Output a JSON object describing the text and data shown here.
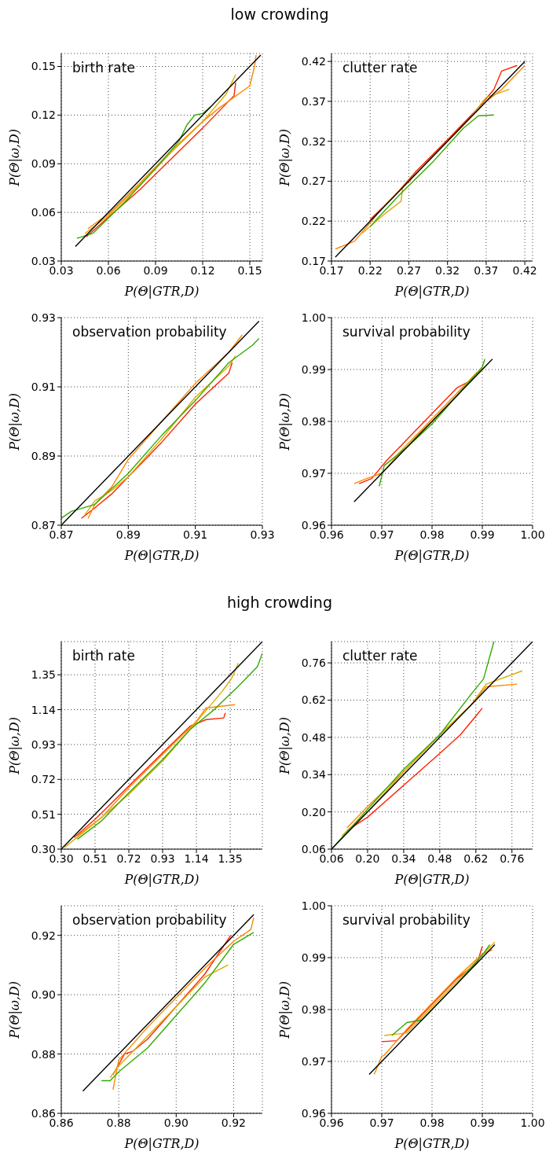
{
  "chart_data": [
    {
      "type": "line",
      "title": "birth rate",
      "annotations": [
        "low crowding"
      ],
      "xlabel": "P(Θ|GTR,D)",
      "ylabel": "P(Θ|ω,D)",
      "xlim": [
        0.03,
        0.158
      ],
      "ylim": [
        0.03,
        0.158
      ],
      "xticks": [
        0.03,
        0.06,
        0.09,
        0.12,
        0.15
      ],
      "yticks": [
        0.03,
        0.06,
        0.09,
        0.12,
        0.15
      ],
      "grid": true,
      "series": [
        {
          "color": "#000000",
          "x": [
            0.039,
            0.157
          ],
          "values": [
            0.039,
            0.157
          ]
        },
        {
          "color": "#33aa00",
          "x": [
            0.04,
            0.05,
            0.07,
            0.09,
            0.105,
            0.11,
            0.115,
            0.12,
            0.125
          ],
          "values": [
            0.044,
            0.047,
            0.066,
            0.087,
            0.104,
            0.114,
            0.12,
            0.121,
            0.125
          ]
        },
        {
          "color": "#ddaa00",
          "x": [
            0.045,
            0.06,
            0.08,
            0.1,
            0.12,
            0.135,
            0.141
          ],
          "values": [
            0.047,
            0.058,
            0.077,
            0.097,
            0.116,
            0.133,
            0.145
          ]
        },
        {
          "color": "#ff8800",
          "x": [
            0.047,
            0.06,
            0.08,
            0.1,
            0.12,
            0.13,
            0.15,
            0.153,
            0.154
          ],
          "values": [
            0.05,
            0.059,
            0.078,
            0.098,
            0.116,
            0.124,
            0.138,
            0.15,
            0.157
          ]
        },
        {
          "color": "#ff2200",
          "x": [
            0.046,
            0.06,
            0.08,
            0.1,
            0.12,
            0.14,
            0.141
          ],
          "values": [
            0.045,
            0.057,
            0.074,
            0.093,
            0.112,
            0.132,
            0.14
          ]
        }
      ]
    },
    {
      "type": "line",
      "title": "clutter rate",
      "xlabel": "P(Θ|GTR,D)",
      "ylabel": "P(Θ|ω,D)",
      "xlim": [
        0.17,
        0.43
      ],
      "ylim": [
        0.17,
        0.43
      ],
      "xticks": [
        0.17,
        0.22,
        0.27,
        0.32,
        0.37,
        0.42
      ],
      "yticks": [
        0.17,
        0.22,
        0.27,
        0.32,
        0.37,
        0.42
      ],
      "grid": true,
      "series": [
        {
          "color": "#000000",
          "x": [
            0.175,
            0.42
          ],
          "values": [
            0.175,
            0.42
          ]
        },
        {
          "color": "#33aa00",
          "x": [
            0.22,
            0.23,
            0.26,
            0.3,
            0.34,
            0.36,
            0.38
          ],
          "values": [
            0.213,
            0.224,
            0.255,
            0.293,
            0.336,
            0.352,
            0.353
          ]
        },
        {
          "color": "#ddaa00",
          "x": [
            0.21,
            0.24,
            0.26,
            0.262,
            0.3,
            0.35,
            0.37,
            0.4
          ],
          "values": [
            0.205,
            0.23,
            0.245,
            0.262,
            0.3,
            0.35,
            0.375,
            0.385
          ]
        },
        {
          "color": "#ff8800",
          "x": [
            0.175,
            0.2,
            0.22,
            0.24,
            0.27,
            0.32,
            0.37,
            0.39,
            0.42
          ],
          "values": [
            0.185,
            0.195,
            0.218,
            0.241,
            0.27,
            0.32,
            0.37,
            0.385,
            0.415
          ]
        },
        {
          "color": "#ff2200",
          "x": [
            0.22,
            0.25,
            0.28,
            0.32,
            0.36,
            0.38,
            0.39,
            0.41
          ],
          "values": [
            0.222,
            0.25,
            0.283,
            0.322,
            0.362,
            0.385,
            0.408,
            0.415
          ]
        }
      ]
    },
    {
      "type": "line",
      "title": "observation probability",
      "xlabel": "P(Θ|GTR,D)",
      "ylabel": "P(Θ|ω,D)",
      "xlim": [
        0.87,
        0.93
      ],
      "ylim": [
        0.87,
        0.93
      ],
      "xticks": [
        0.87,
        0.89,
        0.91,
        0.93
      ],
      "yticks": [
        0.87,
        0.89,
        0.91,
        0.93
      ],
      "grid": true,
      "series": [
        {
          "color": "#000000",
          "x": [
            0.87,
            0.929
          ],
          "values": [
            0.87,
            0.929
          ]
        },
        {
          "color": "#33aa00",
          "x": [
            0.87,
            0.873,
            0.88,
            0.89,
            0.9,
            0.91,
            0.92,
            0.927,
            0.929
          ],
          "values": [
            0.872,
            0.874,
            0.876,
            0.885,
            0.896,
            0.906,
            0.917,
            0.922,
            0.924
          ]
        },
        {
          "color": "#ddaa00",
          "x": [
            0.877,
            0.88,
            0.885,
            0.89,
            0.9,
            0.91,
            0.92,
            0.922
          ],
          "values": [
            0.873,
            0.877,
            0.88,
            0.884,
            0.895,
            0.907,
            0.916,
            0.919
          ]
        },
        {
          "color": "#ff8800",
          "x": [
            0.878,
            0.88,
            0.885,
            0.89,
            0.9,
            0.91,
            0.92,
            0.924
          ],
          "values": [
            0.872,
            0.876,
            0.881,
            0.889,
            0.9,
            0.911,
            0.92,
            0.925
          ]
        },
        {
          "color": "#ff2200",
          "x": [
            0.876,
            0.88,
            0.885,
            0.89,
            0.9,
            0.91,
            0.92,
            0.921
          ],
          "values": [
            0.872,
            0.875,
            0.879,
            0.884,
            0.894,
            0.905,
            0.914,
            0.917
          ]
        }
      ]
    },
    {
      "type": "line",
      "title": "survival probability",
      "xlabel": "P(Θ|GTR,D)",
      "ylabel": "P(Θ|ω,D)",
      "xlim": [
        0.96,
        1.0
      ],
      "ylim": [
        0.96,
        1.0
      ],
      "xticks": [
        0.96,
        0.97,
        0.98,
        0.99,
        {
          "value": 1.0,
          "label": "1.00"
        }
      ],
      "yticks": [
        0.96,
        0.97,
        0.98,
        0.99,
        {
          "value": 1.0,
          "label": "1.00"
        }
      ],
      "grid": true,
      "series": [
        {
          "color": "#000000",
          "x": [
            0.9645,
            0.992
          ],
          "values": [
            0.9645,
            0.992
          ]
        },
        {
          "color": "#33aa00",
          "x": [
            0.9695,
            0.9705,
            0.975,
            0.98,
            0.985,
            0.99,
            0.9905
          ],
          "values": [
            0.9675,
            0.9715,
            0.975,
            0.9795,
            0.985,
            0.9905,
            0.992
          ]
        },
        {
          "color": "#ddaa00",
          "x": [
            0.9725,
            0.975,
            0.98,
            0.985,
            0.988,
            0.9905
          ],
          "values": [
            0.973,
            0.9755,
            0.98,
            0.985,
            0.9885,
            0.9905
          ]
        },
        {
          "color": "#ff8800",
          "x": [
            0.9645,
            0.967,
            0.97,
            0.975,
            0.98,
            0.985,
            0.989
          ],
          "values": [
            0.968,
            0.969,
            0.97,
            0.9755,
            0.9805,
            0.9855,
            0.9895
          ]
        },
        {
          "color": "#ff2200",
          "x": [
            0.9655,
            0.968,
            0.971,
            0.975,
            0.98,
            0.985,
            0.988
          ],
          "values": [
            0.968,
            0.969,
            0.9725,
            0.9765,
            0.9815,
            0.9865,
            0.988
          ]
        }
      ]
    },
    {
      "type": "line",
      "title": "birth rate",
      "annotations": [
        "high crowding"
      ],
      "xlabel": "P(Θ|GTR,D)",
      "ylabel": "P(Θ|ω,D)",
      "xlim": [
        0.3,
        1.55
      ],
      "ylim": [
        0.3,
        1.55
      ],
      "xticks": [
        {
          "value": 0.3,
          "label": "0.30"
        },
        0.51,
        0.72,
        0.93,
        1.14,
        1.35
      ],
      "yticks": [
        {
          "value": 0.3,
          "label": "0.30"
        },
        0.51,
        0.72,
        0.93,
        1.14,
        1.35
      ],
      "grid": true,
      "series": [
        {
          "color": "#000000",
          "x": [
            0.3,
            1.55
          ],
          "values": [
            0.3,
            1.55
          ]
        },
        {
          "color": "#33aa00",
          "x": [
            0.4,
            0.55,
            0.72,
            0.93,
            1.1,
            1.25,
            1.4,
            1.52,
            1.55
          ],
          "values": [
            0.36,
            0.47,
            0.64,
            0.84,
            1.02,
            1.14,
            1.28,
            1.4,
            1.48
          ]
        },
        {
          "color": "#ddaa00",
          "x": [
            0.32,
            0.5,
            0.72,
            0.93,
            1.1,
            1.3,
            1.36,
            1.4
          ],
          "values": [
            0.31,
            0.45,
            0.63,
            0.83,
            1.02,
            1.25,
            1.33,
            1.42
          ]
        },
        {
          "color": "#ff8800",
          "x": [
            0.4,
            0.55,
            0.72,
            0.93,
            1.14,
            1.2,
            1.38
          ],
          "values": [
            0.38,
            0.49,
            0.67,
            0.87,
            1.07,
            1.15,
            1.17
          ]
        },
        {
          "color": "#ff2200",
          "x": [
            0.38,
            0.51,
            0.72,
            0.93,
            1.1,
            1.2,
            1.31,
            1.32
          ],
          "values": [
            0.37,
            0.48,
            0.68,
            0.88,
            1.04,
            1.08,
            1.09,
            1.12
          ]
        }
      ]
    },
    {
      "type": "line",
      "title": "clutter rate",
      "xlabel": "P(Θ|GTR,D)",
      "ylabel": "P(Θ|ω,D)",
      "xlim": [
        0.06,
        0.84
      ],
      "ylim": [
        0.06,
        0.84
      ],
      "xticks": [
        0.06,
        {
          "value": 0.2,
          "label": "0.20"
        },
        0.34,
        0.48,
        0.62,
        0.76
      ],
      "yticks": [
        0.06,
        {
          "value": 0.2,
          "label": "0.20"
        },
        0.34,
        0.48,
        0.62,
        0.76
      ],
      "grid": true,
      "series": [
        {
          "color": "#000000",
          "x": [
            0.06,
            0.84
          ],
          "values": [
            0.06,
            0.84
          ]
        },
        {
          "color": "#33aa00",
          "x": [
            0.06,
            0.2,
            0.34,
            0.48,
            0.6,
            0.65,
            0.69
          ],
          "values": [
            0.06,
            0.21,
            0.36,
            0.49,
            0.64,
            0.7,
            0.84
          ]
        },
        {
          "color": "#ddaa00",
          "x": [
            0.1,
            0.2,
            0.34,
            0.48,
            0.6,
            0.66,
            0.8
          ],
          "values": [
            0.11,
            0.2,
            0.35,
            0.49,
            0.6,
            0.68,
            0.73
          ]
        },
        {
          "color": "#ff8800",
          "x": [
            0.12,
            0.2,
            0.34,
            0.48,
            0.6,
            0.66,
            0.78
          ],
          "values": [
            0.14,
            0.22,
            0.35,
            0.49,
            0.6,
            0.67,
            0.68
          ]
        },
        {
          "color": "#ff2200",
          "x": [
            0.12,
            0.2,
            0.34,
            0.48,
            0.56,
            0.62,
            0.645
          ],
          "values": [
            0.13,
            0.18,
            0.3,
            0.42,
            0.49,
            0.56,
            0.59
          ]
        }
      ]
    },
    {
      "type": "line",
      "title": "observation probability",
      "xlabel": "P(Θ|GTR,D)",
      "ylabel": "P(Θ|ω,D)",
      "xlim": [
        0.86,
        0.93
      ],
      "ylim": [
        0.86,
        0.93
      ],
      "xticks": [
        0.86,
        0.88,
        {
          "value": 0.9,
          "label": "0.90"
        },
        0.92
      ],
      "yticks": [
        0.86,
        0.88,
        {
          "value": 0.9,
          "label": "0.90"
        },
        0.92
      ],
      "grid": true,
      "series": [
        {
          "color": "#000000",
          "x": [
            0.8675,
            0.927
          ],
          "values": [
            0.8675,
            0.927
          ]
        },
        {
          "color": "#33aa00",
          "x": [
            0.874,
            0.877,
            0.88,
            0.89,
            0.9,
            0.91,
            0.92,
            0.927
          ],
          "values": [
            0.871,
            0.871,
            0.874,
            0.882,
            0.893,
            0.904,
            0.917,
            0.921
          ]
        },
        {
          "color": "#ddaa00",
          "x": [
            0.877,
            0.88,
            0.89,
            0.9,
            0.91,
            0.918
          ],
          "values": [
            0.872,
            0.876,
            0.886,
            0.896,
            0.906,
            0.91
          ]
        },
        {
          "color": "#ff8800",
          "x": [
            0.878,
            0.88,
            0.89,
            0.9,
            0.91,
            0.92,
            0.926,
            0.927
          ],
          "values": [
            0.868,
            0.878,
            0.889,
            0.899,
            0.909,
            0.918,
            0.922,
            0.926
          ]
        },
        {
          "color": "#ff2200",
          "x": [
            0.878,
            0.882,
            0.885,
            0.89,
            0.9,
            0.91,
            0.919
          ],
          "values": [
            0.873,
            0.88,
            0.881,
            0.885,
            0.896,
            0.907,
            0.92
          ]
        }
      ]
    },
    {
      "type": "line",
      "title": "survival probability",
      "xlabel": "P(Θ|GTR,D)",
      "ylabel": "P(Θ|ω,D)",
      "xlim": [
        0.96,
        1.0
      ],
      "ylim": [
        0.96,
        1.0
      ],
      "xticks": [
        0.96,
        0.97,
        0.98,
        0.99,
        {
          "value": 1.0,
          "label": "1.00"
        }
      ],
      "yticks": [
        0.96,
        0.97,
        0.98,
        0.99,
        {
          "value": 1.0,
          "label": "1.00"
        }
      ],
      "grid": true,
      "series": [
        {
          "color": "#000000",
          "x": [
            0.9675,
            0.9925
          ],
          "values": [
            0.9675,
            0.9925
          ]
        },
        {
          "color": "#33aa00",
          "x": [
            0.972,
            0.975,
            0.978,
            0.98,
            0.985,
            0.99,
            0.9915
          ],
          "values": [
            0.975,
            0.9775,
            0.978,
            0.98,
            0.985,
            0.9905,
            0.9925
          ]
        },
        {
          "color": "#ddaa00",
          "x": [
            0.9705,
            0.975,
            0.98,
            0.985,
            0.99,
            0.9925
          ],
          "values": [
            0.975,
            0.9755,
            0.9805,
            0.9855,
            0.9905,
            0.993
          ]
        },
        {
          "color": "#ff8800",
          "x": [
            0.9685,
            0.97,
            0.9705,
            0.975,
            0.98,
            0.985,
            0.99,
            0.992
          ],
          "values": [
            0.9675,
            0.971,
            0.9712,
            0.9762,
            0.9812,
            0.9862,
            0.9907,
            0.9915
          ]
        },
        {
          "color": "#ff2200",
          "x": [
            0.97,
            0.973,
            0.975,
            0.98,
            0.985,
            0.989,
            0.99
          ],
          "values": [
            0.9738,
            0.974,
            0.976,
            0.981,
            0.986,
            0.989,
            0.9922
          ]
        }
      ]
    }
  ]
}
